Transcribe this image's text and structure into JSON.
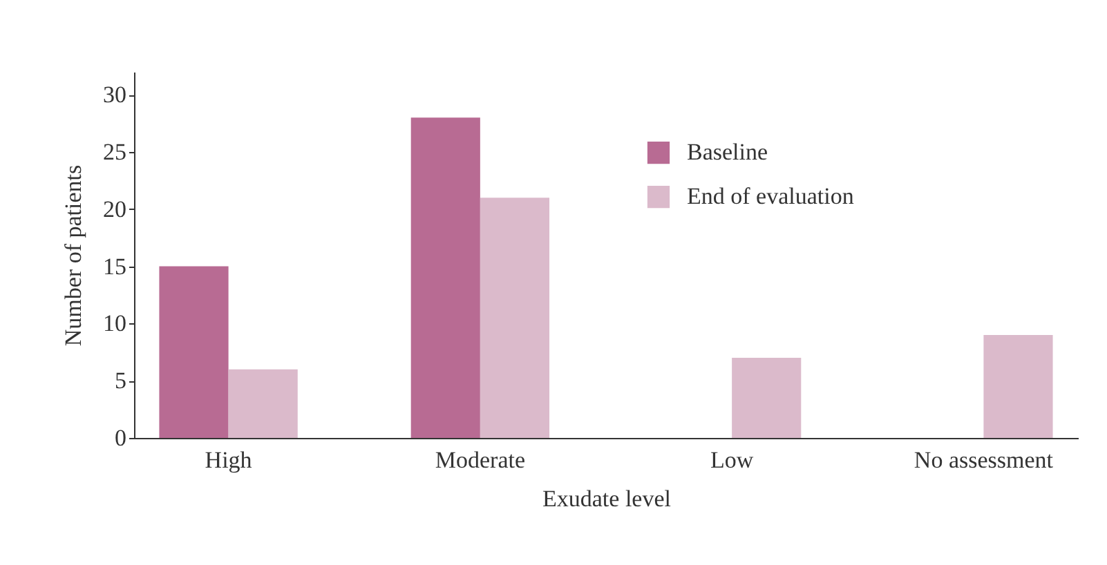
{
  "chart_data": {
    "type": "bar",
    "xlabel": "Exudate level",
    "ylabel": "Number of patients",
    "categories": [
      "High",
      "Moderate",
      "Low",
      "No assessment"
    ],
    "series": [
      {
        "name": "Baseline",
        "color": "#b86b93",
        "values": [
          15,
          28,
          0,
          0
        ]
      },
      {
        "name": "End of evaluation",
        "color": "#dbbacb",
        "values": [
          6,
          21,
          7,
          9
        ]
      }
    ],
    "ylim": [
      0,
      32
    ],
    "yticks": [
      0,
      5,
      10,
      15,
      20,
      25,
      30
    ],
    "legend": "top right"
  }
}
